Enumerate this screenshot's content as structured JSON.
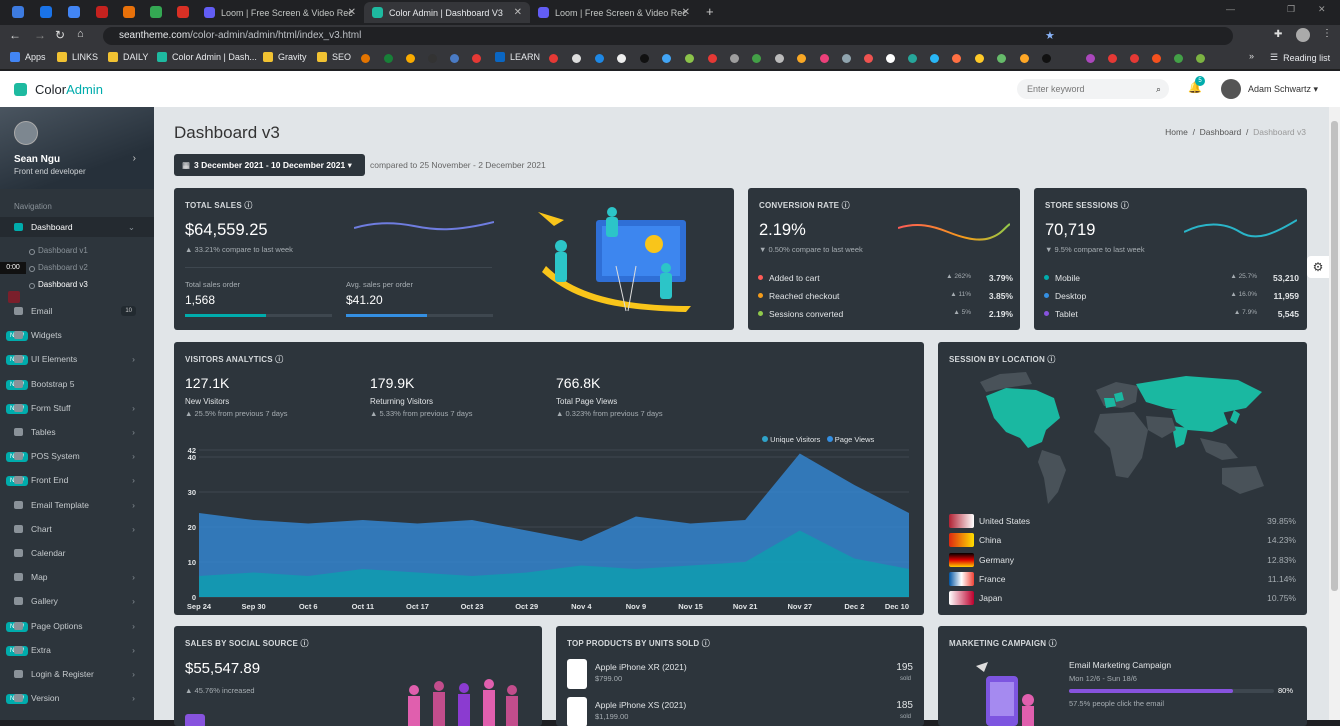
{
  "browser": {
    "tabs": [
      {
        "label": "Loom | Free Screen & Video Rec",
        "active": false
      },
      {
        "label": "Color Admin | Dashboard V3",
        "active": true
      },
      {
        "label": "Loom | Free Screen & Video Rec",
        "active": false
      }
    ],
    "url_domain": "seantheme.com",
    "url_path": "/color-admin/admin/html/index_v3.html",
    "bookmarks": [
      "Apps",
      "LINKS",
      "DAILY",
      "Color Admin | Dash...",
      "Gravity",
      "SEO",
      "LEARN"
    ],
    "reading_list": "Reading list"
  },
  "header": {
    "brand_a": "Color",
    "brand_b": "Admin",
    "search_placeholder": "Enter keyword",
    "notif_count": "5",
    "user": "Adam Schwartz"
  },
  "sidebar": {
    "name": "Sean Ngu",
    "role": "Front end developer",
    "nav_label": "Navigation",
    "timer": "0:00",
    "dashboard": "Dashboard",
    "subs": [
      "Dashboard v1",
      "Dashboard v2",
      "Dashboard v3"
    ],
    "items": [
      {
        "label": "Email",
        "count": "10"
      },
      {
        "label": "Widgets",
        "badge": "NEW"
      },
      {
        "label": "UI Elements",
        "badge": "NEW",
        "chev": true
      },
      {
        "label": "Bootstrap 5",
        "badge": "NEW"
      },
      {
        "label": "Form Stuff",
        "badge": "NEW",
        "chev": true
      },
      {
        "label": "Tables",
        "chev": true
      },
      {
        "label": "POS System",
        "badge": "NEW",
        "chev": true
      },
      {
        "label": "Front End",
        "badge": "NEW",
        "chev": true
      },
      {
        "label": "Email Template",
        "chev": true
      },
      {
        "label": "Chart",
        "chev": true
      },
      {
        "label": "Calendar"
      },
      {
        "label": "Map",
        "chev": true
      },
      {
        "label": "Gallery",
        "chev": true
      },
      {
        "label": "Page Options",
        "badge": "NEW",
        "chev": true
      },
      {
        "label": "Extra",
        "badge": "NEW",
        "chev": true
      },
      {
        "label": "Login & Register",
        "chev": true
      },
      {
        "label": "Version",
        "badge": "NEW",
        "chev": true
      }
    ]
  },
  "page": {
    "title": "Dashboard v3",
    "crumbs": [
      "Home",
      "Dashboard",
      "Dashboard v3"
    ],
    "date_range": "3 December 2021 - 10 December 2021",
    "compared": "compared to 25 November - 2 December 2021"
  },
  "total_sales": {
    "title": "TOTAL SALES",
    "value": "$64,559.25",
    "delta": "33.21% compare to last week",
    "orders_label": "Total sales order",
    "orders": "1,568",
    "avg_label": "Avg. sales per order",
    "avg": "$41.20"
  },
  "conversion": {
    "title": "CONVERSION RATE",
    "value": "2.19%",
    "delta": "0.50% compare to last week",
    "rows": [
      {
        "label": "Added to cart",
        "pct": "262%",
        "val": "3.79%",
        "color": "#ff5b57"
      },
      {
        "label": "Reached checkout",
        "pct": "11%",
        "val": "3.85%",
        "color": "#f59c1a"
      },
      {
        "label": "Sessions converted",
        "pct": "5%",
        "val": "2.19%",
        "color": "#90ca4b"
      }
    ]
  },
  "sessions": {
    "title": "STORE SESSIONS",
    "value": "70,719",
    "delta": "9.5% compare to last week",
    "rows": [
      {
        "label": "Mobile",
        "pct": "25.7%",
        "val": "53,210",
        "color": "#00acac"
      },
      {
        "label": "Desktop",
        "pct": "16.0%",
        "val": "11,959",
        "color": "#348fe2"
      },
      {
        "label": "Tablet",
        "pct": "7.9%",
        "val": "5,545",
        "color": "#8753de"
      }
    ]
  },
  "visitors": {
    "title": "VISITORS ANALYTICS",
    "stats": [
      {
        "value": "127.1K",
        "label": "New Visitors",
        "delta": "25.5% from previous 7 days"
      },
      {
        "value": "179.9K",
        "label": "Returning Visitors",
        "delta": "5.33% from previous 7 days"
      },
      {
        "value": "766.8K",
        "label": "Total Page Views",
        "delta": "0.323% from previous 7 days"
      }
    ]
  },
  "chart_data": {
    "type": "area",
    "x": [
      "Sep 24",
      "Sep 30",
      "Oct 6",
      "Oct 11",
      "Oct 17",
      "Oct 23",
      "Oct 29",
      "Nov 4",
      "Nov 9",
      "Nov 15",
      "Nov 21",
      "Nov 27",
      "Dec 2",
      "Dec 10"
    ],
    "y_ticks": [
      "0",
      "10",
      "20",
      "30",
      "40",
      "42"
    ],
    "ylim": [
      0,
      42
    ],
    "series": [
      {
        "name": "Unique Visitors",
        "color": "#00acac",
        "values": [
          6,
          7,
          6,
          8,
          7,
          6,
          7,
          9,
          8,
          9,
          10,
          19,
          11,
          8
        ]
      },
      {
        "name": "Page Views",
        "color": "#348fe2",
        "values": [
          24,
          22,
          21,
          22,
          21,
          22,
          19,
          16,
          23,
          21,
          22,
          41,
          32,
          24
        ]
      }
    ],
    "legend": "top-right"
  },
  "location": {
    "title": "SESSION BY LOCATION",
    "rows": [
      {
        "country": "United States",
        "pct": "39.85%"
      },
      {
        "country": "China",
        "pct": "14.23%"
      },
      {
        "country": "Germany",
        "pct": "12.83%"
      },
      {
        "country": "France",
        "pct": "11.14%"
      },
      {
        "country": "Japan",
        "pct": "10.75%"
      }
    ]
  },
  "social": {
    "title": "SALES BY SOCIAL SOURCE",
    "value": "$55,547.89",
    "delta": "45.76% increased"
  },
  "products": {
    "title": "TOP PRODUCTS BY UNITS SOLD",
    "rows": [
      {
        "name": "Apple iPhone XR (2021)",
        "price": "$799.00",
        "units": "195",
        "unit_label": "sold"
      },
      {
        "name": "Apple iPhone XS (2021)",
        "price": "$1,199.00",
        "units": "185",
        "unit_label": "sold"
      }
    ]
  },
  "marketing": {
    "title": "MARKETING CAMPAIGN",
    "campaign": "Email Marketing Campaign",
    "dates": "Mon 12/6 - Sun 18/6",
    "progress": 0.8,
    "progress_label": "80%",
    "clicked": "57.5% people click the email"
  }
}
